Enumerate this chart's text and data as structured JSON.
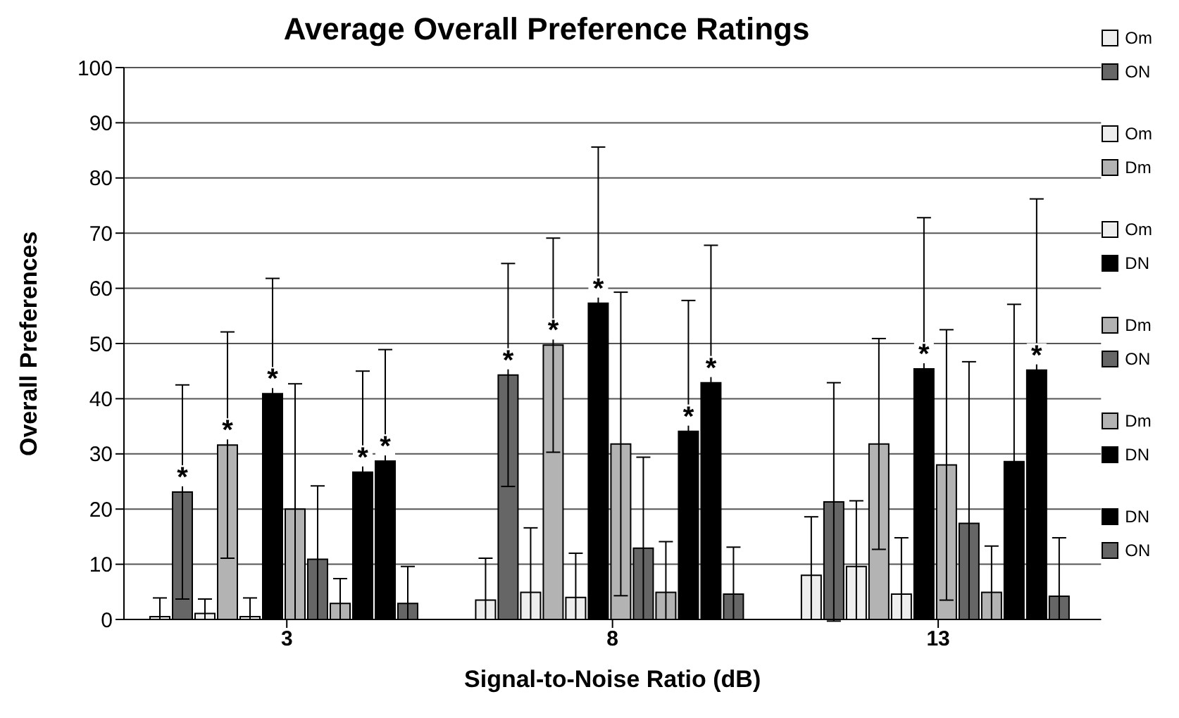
{
  "chart_data": {
    "type": "bar",
    "title": "Average Overall Preference Ratings",
    "xlabel": "Signal-to-Noise Ratio (dB)",
    "ylabel": "Overall Preferences",
    "categories": [
      "3",
      "8",
      "13"
    ],
    "series": [
      {
        "name": "Om",
        "color": "#eeeeee",
        "values": [
          0.5,
          3.5,
          8.0
        ],
        "errors": [
          [
            0,
            3.9
          ],
          [
            0,
            11.1
          ],
          [
            0,
            18.6
          ]
        ]
      },
      {
        "name": "ON",
        "color": "#666666",
        "values": [
          23.1,
          44.3,
          21.3
        ],
        "errors": [
          19.4,
          20.2,
          21.6
        ],
        "value_labels": [
          "*",
          "*",
          null
        ]
      },
      {
        "name": "Om",
        "color": "#eeeeee",
        "values": [
          1.1,
          4.9,
          9.6
        ],
        "errors": [
          [
            0,
            3.7
          ],
          [
            0,
            16.6
          ],
          [
            0,
            21.5
          ]
        ]
      },
      {
        "name": "Dm",
        "color": "#b3b3b3",
        "values": [
          31.6,
          49.7,
          31.8
        ],
        "errors": [
          20.5,
          19.4,
          19.1
        ],
        "value_labels": [
          "*",
          "*",
          null
        ]
      },
      {
        "name": "Om",
        "color": "#eeeeee",
        "values": [
          0.5,
          4.0,
          4.6
        ],
        "errors": [
          [
            0,
            3.9
          ],
          [
            0,
            12.0
          ],
          [
            0,
            14.8
          ]
        ]
      },
      {
        "name": "DN",
        "color": "#000000",
        "values": [
          40.9,
          57.3,
          45.4
        ],
        "errors": [
          20.9,
          28.3,
          27.4
        ],
        "value_labels": [
          "*",
          "*",
          "*"
        ]
      },
      {
        "name": "Dm",
        "color": "#b3b3b3",
        "values": [
          20.0,
          31.8,
          28.0
        ],
        "errors": [
          [
            0,
            42.7
          ],
          27.5,
          24.5
        ]
      },
      {
        "name": "ON",
        "color": "#666666",
        "values": [
          10.9,
          12.9,
          17.4
        ],
        "errors": [
          [
            0,
            24.2
          ],
          [
            0,
            29.4
          ],
          [
            0,
            46.7
          ]
        ]
      },
      {
        "name": "Dm",
        "color": "#b3b3b3",
        "values": [
          2.9,
          4.9,
          4.9
        ],
        "errors": [
          [
            0,
            7.4
          ],
          [
            0,
            14.1
          ],
          [
            0,
            13.3
          ]
        ]
      },
      {
        "name": "DN",
        "color": "#000000",
        "values": [
          26.7,
          34.1,
          28.6
        ],
        "errors": [
          18.3,
          23.7,
          28.5
        ],
        "value_labels": [
          "*",
          "*",
          null
        ]
      },
      {
        "name": "DN",
        "color": "#000000",
        "values": [
          28.7,
          42.9,
          45.2
        ],
        "errors": [
          20.2,
          24.9,
          31.0
        ],
        "value_labels": [
          "*",
          "*",
          "*"
        ]
      },
      {
        "name": "ON",
        "color": "#666666",
        "values": [
          2.9,
          4.6,
          4.2
        ],
        "errors": [
          [
            0,
            9.6
          ],
          [
            0,
            13.1
          ],
          [
            0,
            14.8
          ]
        ]
      }
    ],
    "ylim": [
      0,
      100
    ],
    "yticks": [
      0,
      10,
      20,
      30,
      40,
      50,
      60,
      70,
      80,
      90,
      100
    ],
    "grid": "y",
    "legend": "right"
  }
}
